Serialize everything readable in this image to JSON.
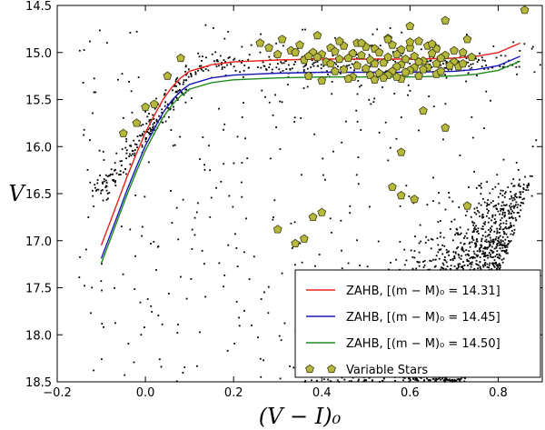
{
  "chart_data": {
    "type": "scatter",
    "xlabel": "(V − I)₀",
    "ylabel": "V",
    "xlim": [
      -0.2,
      0.9
    ],
    "ylim": [
      18.5,
      14.5
    ],
    "y_inverted": true,
    "x_ticks": [
      -0.2,
      0.0,
      0.2,
      0.4,
      0.6,
      0.8
    ],
    "x_tick_labels": [
      "−0.2",
      "0.0",
      "0.2",
      "0.4",
      "0.6",
      "0.8"
    ],
    "y_ticks": [
      14.5,
      15.0,
      15.5,
      16.0,
      16.5,
      17.0,
      17.5,
      18.0,
      18.5
    ],
    "y_tick_labels": [
      "14.5",
      "15.0",
      "15.5",
      "16.0",
      "16.5",
      "17.0",
      "17.5",
      "18.0",
      "18.5"
    ],
    "legend_position": "lower-right",
    "series": [
      {
        "name": "ZAHB, [(m − M)₀ = 14.31]",
        "kind": "line",
        "color": "#e8231c",
        "x": [
          -0.1,
          -0.08,
          -0.06,
          -0.04,
          -0.02,
          0.0,
          0.02,
          0.04,
          0.06,
          0.08,
          0.1,
          0.15,
          0.2,
          0.3,
          0.4,
          0.5,
          0.6,
          0.7,
          0.75,
          0.8,
          0.85
        ],
        "y": [
          17.05,
          16.8,
          16.55,
          16.3,
          16.07,
          15.85,
          15.67,
          15.5,
          15.37,
          15.27,
          15.2,
          15.13,
          15.1,
          15.08,
          15.07,
          15.07,
          15.07,
          15.06,
          15.04,
          15.0,
          14.9
        ]
      },
      {
        "name": "ZAHB, [(m − M)₀ = 14.45]",
        "kind": "line",
        "color": "#1a1ab8",
        "x": [
          -0.1,
          -0.08,
          -0.06,
          -0.04,
          -0.02,
          0.0,
          0.02,
          0.04,
          0.06,
          0.08,
          0.1,
          0.15,
          0.2,
          0.3,
          0.4,
          0.5,
          0.6,
          0.7,
          0.75,
          0.8,
          0.85
        ],
        "y": [
          17.19,
          16.94,
          16.69,
          16.44,
          16.21,
          15.99,
          15.81,
          15.64,
          15.51,
          15.41,
          15.34,
          15.27,
          15.24,
          15.22,
          15.21,
          15.21,
          15.21,
          15.2,
          15.18,
          15.14,
          15.04
        ]
      },
      {
        "name": "ZAHB, [(m − M)₀ = 14.50]",
        "kind": "line",
        "color": "#1e8a1e",
        "x": [
          -0.1,
          -0.08,
          -0.06,
          -0.04,
          -0.02,
          0.0,
          0.02,
          0.04,
          0.06,
          0.08,
          0.1,
          0.15,
          0.2,
          0.3,
          0.4,
          0.5,
          0.6,
          0.7,
          0.75,
          0.8,
          0.85
        ],
        "y": [
          17.24,
          16.99,
          16.74,
          16.49,
          16.26,
          16.04,
          15.86,
          15.69,
          15.56,
          15.46,
          15.39,
          15.32,
          15.29,
          15.27,
          15.26,
          15.26,
          15.26,
          15.25,
          15.23,
          15.19,
          15.09
        ]
      },
      {
        "name": "Variable Stars",
        "kind": "markers",
        "marker": "pentagon",
        "color": "#b5b83a",
        "x": [
          0.86,
          0.6,
          0.68,
          0.55,
          0.31,
          0.26,
          0.39,
          0.48,
          0.62,
          0.73,
          0.35,
          0.42,
          0.45,
          0.5,
          0.52,
          0.56,
          0.58,
          0.6,
          0.64,
          0.66,
          0.7,
          0.38,
          0.4,
          0.43,
          0.47,
          0.49,
          0.53,
          0.57,
          0.61,
          0.65,
          0.68,
          0.72,
          0.46,
          0.51,
          0.55,
          0.59,
          0.63,
          0.67,
          0.36,
          0.41,
          0.44,
          0.54,
          0.58,
          0.62,
          0.66,
          0.3,
          0.33,
          0.37,
          0.48,
          0.52,
          0.57,
          0.61,
          0.7,
          0.74,
          0.45,
          0.5,
          0.56,
          0.6,
          0.64,
          0.69,
          0.28,
          0.34,
          0.39,
          0.42,
          0.43,
          0.53,
          0.55,
          0.59,
          0.63,
          0.66,
          0.71,
          0.37,
          0.47,
          0.51,
          0.54,
          0.58,
          0.62,
          0.44,
          0.49,
          0.55,
          0.6,
          0.65,
          0.4,
          0.46,
          0.52,
          0.57,
          0.67,
          0.72,
          0.63,
          0.68,
          0.58,
          0.08,
          0.05,
          0.0,
          -0.02,
          -0.05,
          0.02,
          0.56,
          0.4,
          0.38,
          0.3,
          0.73,
          0.58,
          0.61,
          0.36,
          0.34,
          0.38
        ],
        "y": [
          14.55,
          14.72,
          14.66,
          14.85,
          14.86,
          14.9,
          14.82,
          14.9,
          14.88,
          14.86,
          14.92,
          14.95,
          14.93,
          14.94,
          14.96,
          14.92,
          14.97,
          14.95,
          14.93,
          14.96,
          14.98,
          15.0,
          15.02,
          14.99,
          15.01,
          15.03,
          15.0,
          15.02,
          15.04,
          15.01,
          15.03,
          15.0,
          15.06,
          15.08,
          15.05,
          15.07,
          15.09,
          15.06,
          15.08,
          15.1,
          15.07,
          15.11,
          15.13,
          15.1,
          15.12,
          15.02,
          14.98,
          15.04,
          15.14,
          15.12,
          15.15,
          15.16,
          15.1,
          15.05,
          15.18,
          15.17,
          15.2,
          15.19,
          15.16,
          15.14,
          14.95,
          15.0,
          15.05,
          15.12,
          15.2,
          15.22,
          15.24,
          15.21,
          15.18,
          15.23,
          15.15,
          15.25,
          15.26,
          15.24,
          15.27,
          15.28,
          15.25,
          14.88,
          14.9,
          14.86,
          14.89,
          14.91,
          15.3,
          15.28,
          15.29,
          15.26,
          15.2,
          15.12,
          15.62,
          15.8,
          16.06,
          15.06,
          15.25,
          15.58,
          15.75,
          15.86,
          15.55,
          16.43,
          16.7,
          16.75,
          16.88,
          16.63,
          16.52,
          16.56,
          16.98,
          17.03,
          17.38
        ],
        "note": "Variable-star positions estimated from the figure; clustered near the horizontal branch at V ≈ 15.0–15.3"
      },
      {
        "name": "field stars",
        "kind": "dots",
        "color": "#000000",
        "description": "Dense cloud of small black dots (other cluster and field stars) filling most of the plane; densest at lower right (V > 16.5, (V−I)₀ > 0.6) and along the horizontal branch; rendered procedurally"
      }
    ]
  }
}
